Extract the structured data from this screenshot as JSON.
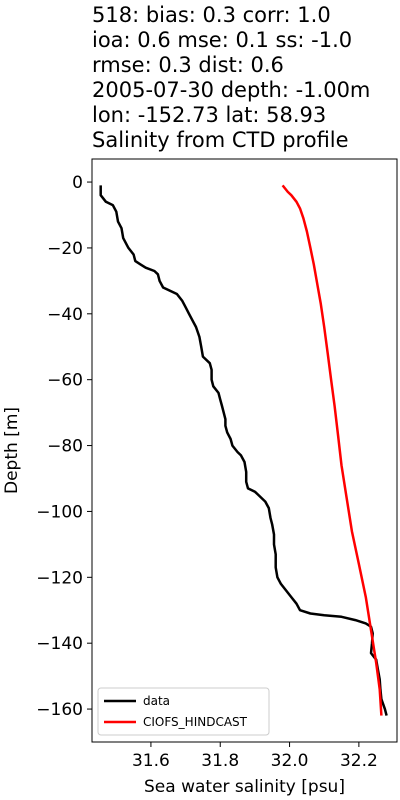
{
  "chart_data": {
    "type": "line",
    "title_lines": [
      "518: bias: 0.3  corr: 1.0",
      "ioa: 0.6  mse: 0.1  ss: -1.0",
      "rmse: 0.3  dist: 0.6",
      "2005-07-30 depth: -1.00m",
      "lon: -152.73 lat: 58.93",
      "Salinity from CTD profile"
    ],
    "xlabel": "Sea water salinity [psu]",
    "ylabel": "Depth [m]",
    "xlim": [
      31.43,
      32.31
    ],
    "ylim": [
      -170,
      7
    ],
    "xticks": [
      31.6,
      31.8,
      32.0,
      32.2
    ],
    "yticks": [
      0,
      -20,
      -40,
      -60,
      -80,
      -100,
      -120,
      -140,
      -160
    ],
    "xtick_labels": [
      "31.6",
      "31.8",
      "32.0",
      "32.2"
    ],
    "ytick_labels": [
      "0",
      "−20",
      "−40",
      "−60",
      "−80",
      "−100",
      "−120",
      "−140",
      "−160"
    ],
    "grid": false,
    "legend_position": "bottom-left",
    "series": [
      {
        "name": "data",
        "color": "#000000",
        "points": [
          [
            31.455,
            -1
          ],
          [
            31.455,
            -4
          ],
          [
            31.47,
            -6
          ],
          [
            31.49,
            -7
          ],
          [
            31.5,
            -9
          ],
          [
            31.505,
            -12
          ],
          [
            31.515,
            -14
          ],
          [
            31.52,
            -17
          ],
          [
            31.535,
            -20
          ],
          [
            31.55,
            -22
          ],
          [
            31.555,
            -24
          ],
          [
            31.57,
            -25
          ],
          [
            31.585,
            -26
          ],
          [
            31.61,
            -27
          ],
          [
            31.62,
            -28
          ],
          [
            31.625,
            -30
          ],
          [
            31.635,
            -32
          ],
          [
            31.655,
            -33
          ],
          [
            31.675,
            -34
          ],
          [
            31.69,
            -36
          ],
          [
            31.7,
            -38
          ],
          [
            31.71,
            -40
          ],
          [
            31.72,
            -42
          ],
          [
            31.73,
            -44
          ],
          [
            31.74,
            -47
          ],
          [
            31.745,
            -50
          ],
          [
            31.75,
            -53
          ],
          [
            31.77,
            -55
          ],
          [
            31.775,
            -57
          ],
          [
            31.775,
            -60
          ],
          [
            31.78,
            -62
          ],
          [
            31.795,
            -64
          ],
          [
            31.8,
            -66
          ],
          [
            31.805,
            -68
          ],
          [
            31.81,
            -70
          ],
          [
            31.815,
            -72
          ],
          [
            31.815,
            -74
          ],
          [
            31.82,
            -76
          ],
          [
            31.83,
            -78
          ],
          [
            31.835,
            -80
          ],
          [
            31.85,
            -82
          ],
          [
            31.86,
            -83
          ],
          [
            31.87,
            -85
          ],
          [
            31.875,
            -88
          ],
          [
            31.875,
            -91
          ],
          [
            31.88,
            -93
          ],
          [
            31.9,
            -94
          ],
          [
            31.91,
            -95
          ],
          [
            31.93,
            -97
          ],
          [
            31.94,
            -99
          ],
          [
            31.945,
            -102
          ],
          [
            31.95,
            -104
          ],
          [
            31.955,
            -107
          ],
          [
            31.955,
            -110
          ],
          [
            31.96,
            -113
          ],
          [
            31.96,
            -117
          ],
          [
            31.965,
            -120
          ],
          [
            31.975,
            -122
          ],
          [
            31.99,
            -124
          ],
          [
            32.005,
            -126
          ],
          [
            32.02,
            -128
          ],
          [
            32.03,
            -130
          ],
          [
            32.06,
            -131
          ],
          [
            32.1,
            -131.5
          ],
          [
            32.15,
            -132
          ],
          [
            32.19,
            -133
          ],
          [
            32.22,
            -134
          ],
          [
            32.235,
            -135
          ],
          [
            32.24,
            -137
          ],
          [
            32.238,
            -140
          ],
          [
            32.235,
            -143
          ],
          [
            32.25,
            -145
          ],
          [
            32.255,
            -148
          ],
          [
            32.26,
            -151
          ],
          [
            32.262,
            -154
          ],
          [
            32.265,
            -157
          ],
          [
            32.275,
            -160
          ],
          [
            32.28,
            -162
          ]
        ]
      },
      {
        "name": "CIOFS_HINDCAST",
        "color": "#ff0000",
        "points": [
          [
            31.98,
            -1
          ],
          [
            31.995,
            -3
          ],
          [
            32.005,
            -4
          ],
          [
            32.02,
            -6
          ],
          [
            32.03,
            -8
          ],
          [
            32.04,
            -11
          ],
          [
            32.05,
            -15
          ],
          [
            32.06,
            -20
          ],
          [
            32.07,
            -25
          ],
          [
            32.08,
            -31
          ],
          [
            32.09,
            -37
          ],
          [
            32.1,
            -44
          ],
          [
            32.11,
            -52
          ],
          [
            32.12,
            -60
          ],
          [
            32.13,
            -68
          ],
          [
            32.14,
            -77
          ],
          [
            32.15,
            -86
          ],
          [
            32.165,
            -96
          ],
          [
            32.18,
            -106
          ],
          [
            32.2,
            -116
          ],
          [
            32.22,
            -126
          ],
          [
            32.235,
            -136
          ],
          [
            32.25,
            -146
          ],
          [
            32.26,
            -154
          ],
          [
            32.265,
            -162
          ]
        ]
      }
    ]
  }
}
